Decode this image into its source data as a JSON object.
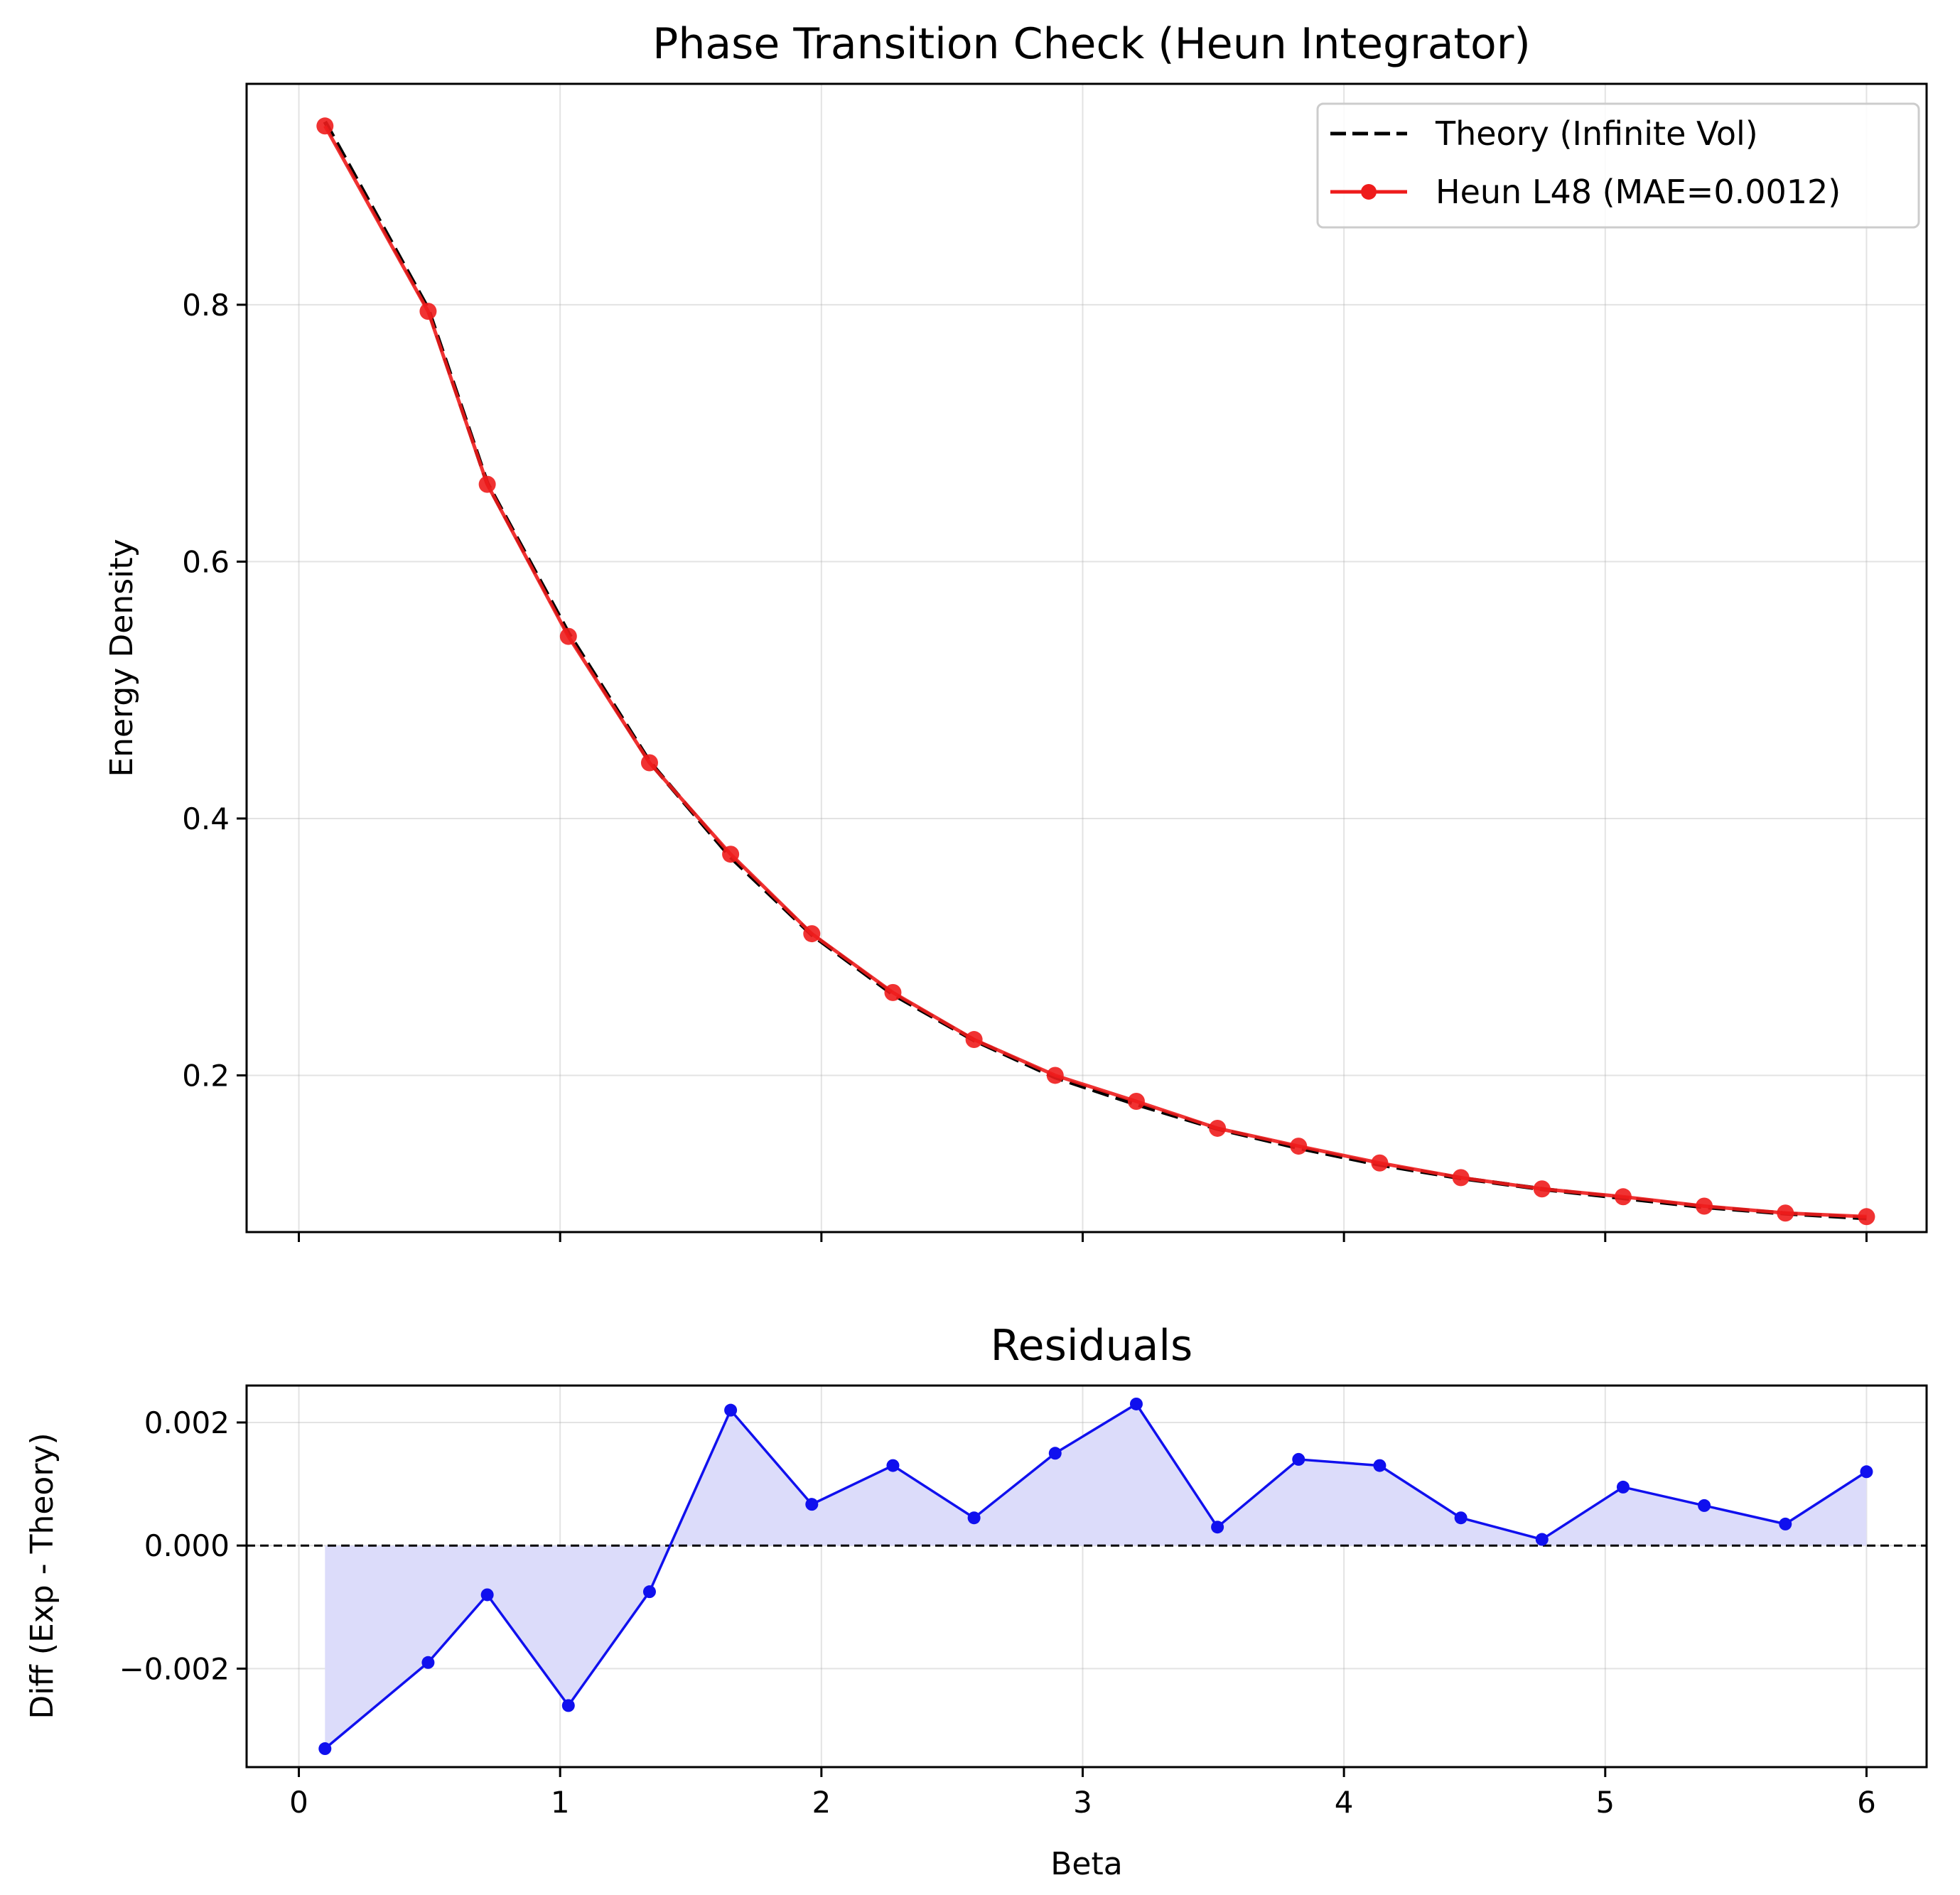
{
  "chart_data": [
    {
      "type": "line",
      "title": "Phase Transition Check (Heun Integrator)",
      "xlabel": "",
      "ylabel": "Energy Density",
      "xlim": [
        -0.2,
        6.23
      ],
      "ylim": [
        0.078,
        0.972
      ],
      "xticks": [
        0,
        1,
        2,
        3,
        4,
        5,
        6
      ],
      "xtick_labels": [
        "",
        "",
        "",
        "",
        "",
        "",
        ""
      ],
      "yticks": [
        0.2,
        0.4,
        0.6,
        0.8
      ],
      "ytick_labels": [
        "0.2",
        "0.4",
        "0.6",
        "0.8"
      ],
      "grid": true,
      "legend_position": "top-right",
      "x": [
        0.1,
        0.4947,
        0.7211,
        1.0316,
        1.3421,
        1.6526,
        1.9632,
        2.2737,
        2.5842,
        2.8947,
        3.2053,
        3.5158,
        3.8263,
        4.1368,
        4.4474,
        4.7579,
        5.0684,
        5.3789,
        5.6895,
        6.0
      ],
      "series": [
        {
          "name": "Theory (Infinite Vol)",
          "style": "dashed",
          "color": "#000000",
          "values": [
            0.9425,
            0.7968,
            0.661,
            0.5444,
            0.4442,
            0.37,
            0.3096,
            0.2632,
            0.2274,
            0.1985,
            0.1775,
            0.1585,
            0.1435,
            0.1305,
            0.12,
            0.1115,
            0.1045,
            0.0975,
            0.0925,
            0.0888
          ]
        },
        {
          "name": "Heun L48 (MAE=0.0012)",
          "style": "solid-marker",
          "color": "#ee1c1c",
          "values": [
            0.9392,
            0.7949,
            0.6602,
            0.5418,
            0.4434,
            0.3722,
            0.3103,
            0.2645,
            0.2279,
            0.2,
            0.1798,
            0.1588,
            0.1449,
            0.1318,
            0.1204,
            0.1116,
            0.1055,
            0.0982,
            0.0928,
            0.09
          ]
        }
      ]
    },
    {
      "type": "line",
      "title": "Residuals",
      "xlabel": "Beta",
      "ylabel": "Diff (Exp - Theory)",
      "xlim": [
        -0.2,
        6.23
      ],
      "ylim": [
        -0.0036,
        0.0026
      ],
      "xticks": [
        0,
        1,
        2,
        3,
        4,
        5,
        6
      ],
      "xtick_labels": [
        "0",
        "1",
        "2",
        "3",
        "4",
        "5",
        "6"
      ],
      "yticks": [
        -0.002,
        0.0,
        0.002
      ],
      "ytick_labels": [
        "−0.002",
        "0.000",
        "0.002"
      ],
      "grid": true,
      "zero_line": "dashed",
      "fill_to_zero": true,
      "x": [
        0.1,
        0.4947,
        0.7211,
        1.0316,
        1.3421,
        1.6526,
        1.9632,
        2.2737,
        2.5842,
        2.8947,
        3.2053,
        3.5158,
        3.8263,
        4.1368,
        4.4474,
        4.7579,
        5.0684,
        5.3789,
        5.6895,
        6.0
      ],
      "series": [
        {
          "color": "#1010ee",
          "fill_color": "#dcdcfa",
          "values": [
            -0.0033,
            -0.0019,
            -0.0008,
            -0.0026,
            -0.00075,
            0.0022,
            0.00067,
            0.0013,
            0.00045,
            0.0015,
            0.0023,
            0.0003,
            0.0014,
            0.0013,
            0.00045,
            0.0001,
            0.00095,
            0.00065,
            0.00035,
            0.0012
          ]
        }
      ]
    }
  ]
}
